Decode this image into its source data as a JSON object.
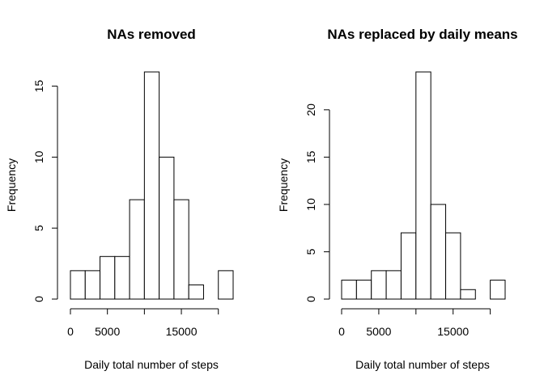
{
  "chart_data": [
    {
      "type": "bar",
      "subtype": "histogram",
      "title": "NAs removed",
      "xlabel": "Daily total number of steps",
      "ylabel": "Frequency",
      "bin_edges": [
        0,
        2000,
        4000,
        6000,
        8000,
        10000,
        12000,
        14000,
        16000,
        18000,
        20000,
        22000
      ],
      "values": [
        2,
        2,
        3,
        3,
        7,
        16,
        10,
        7,
        1,
        0,
        2
      ],
      "xticks": [
        0,
        5000,
        10000,
        15000,
        20000
      ],
      "xtick_labels": [
        "0",
        "5000",
        "",
        "15000",
        ""
      ],
      "yticks": [
        0,
        5,
        10,
        15
      ],
      "ytick_labels": [
        "0",
        "5",
        "10",
        "15"
      ],
      "xlim": [
        0,
        22000
      ],
      "ylim": [
        0,
        16
      ],
      "grid": false,
      "legend": "none",
      "colors": {
        "fill": "#ffffff",
        "stroke": "#000000"
      }
    },
    {
      "type": "bar",
      "subtype": "histogram",
      "title": "NAs replaced by daily means",
      "xlabel": "Daily total number of steps",
      "ylabel": "Frequency",
      "bin_edges": [
        0,
        2000,
        4000,
        6000,
        8000,
        10000,
        12000,
        14000,
        16000,
        18000,
        20000,
        22000
      ],
      "values": [
        2,
        2,
        3,
        3,
        7,
        24,
        10,
        7,
        1,
        0,
        2
      ],
      "xticks": [
        0,
        5000,
        10000,
        15000,
        20000
      ],
      "xtick_labels": [
        "0",
        "5000",
        "",
        "15000",
        ""
      ],
      "yticks": [
        0,
        5,
        10,
        15,
        20
      ],
      "ytick_labels": [
        "0",
        "5",
        "10",
        "15",
        "20"
      ],
      "xlim": [
        0,
        22000
      ],
      "ylim": [
        0,
        24
      ],
      "grid": false,
      "legend": "none",
      "colors": {
        "fill": "#ffffff",
        "stroke": "#000000"
      }
    }
  ]
}
